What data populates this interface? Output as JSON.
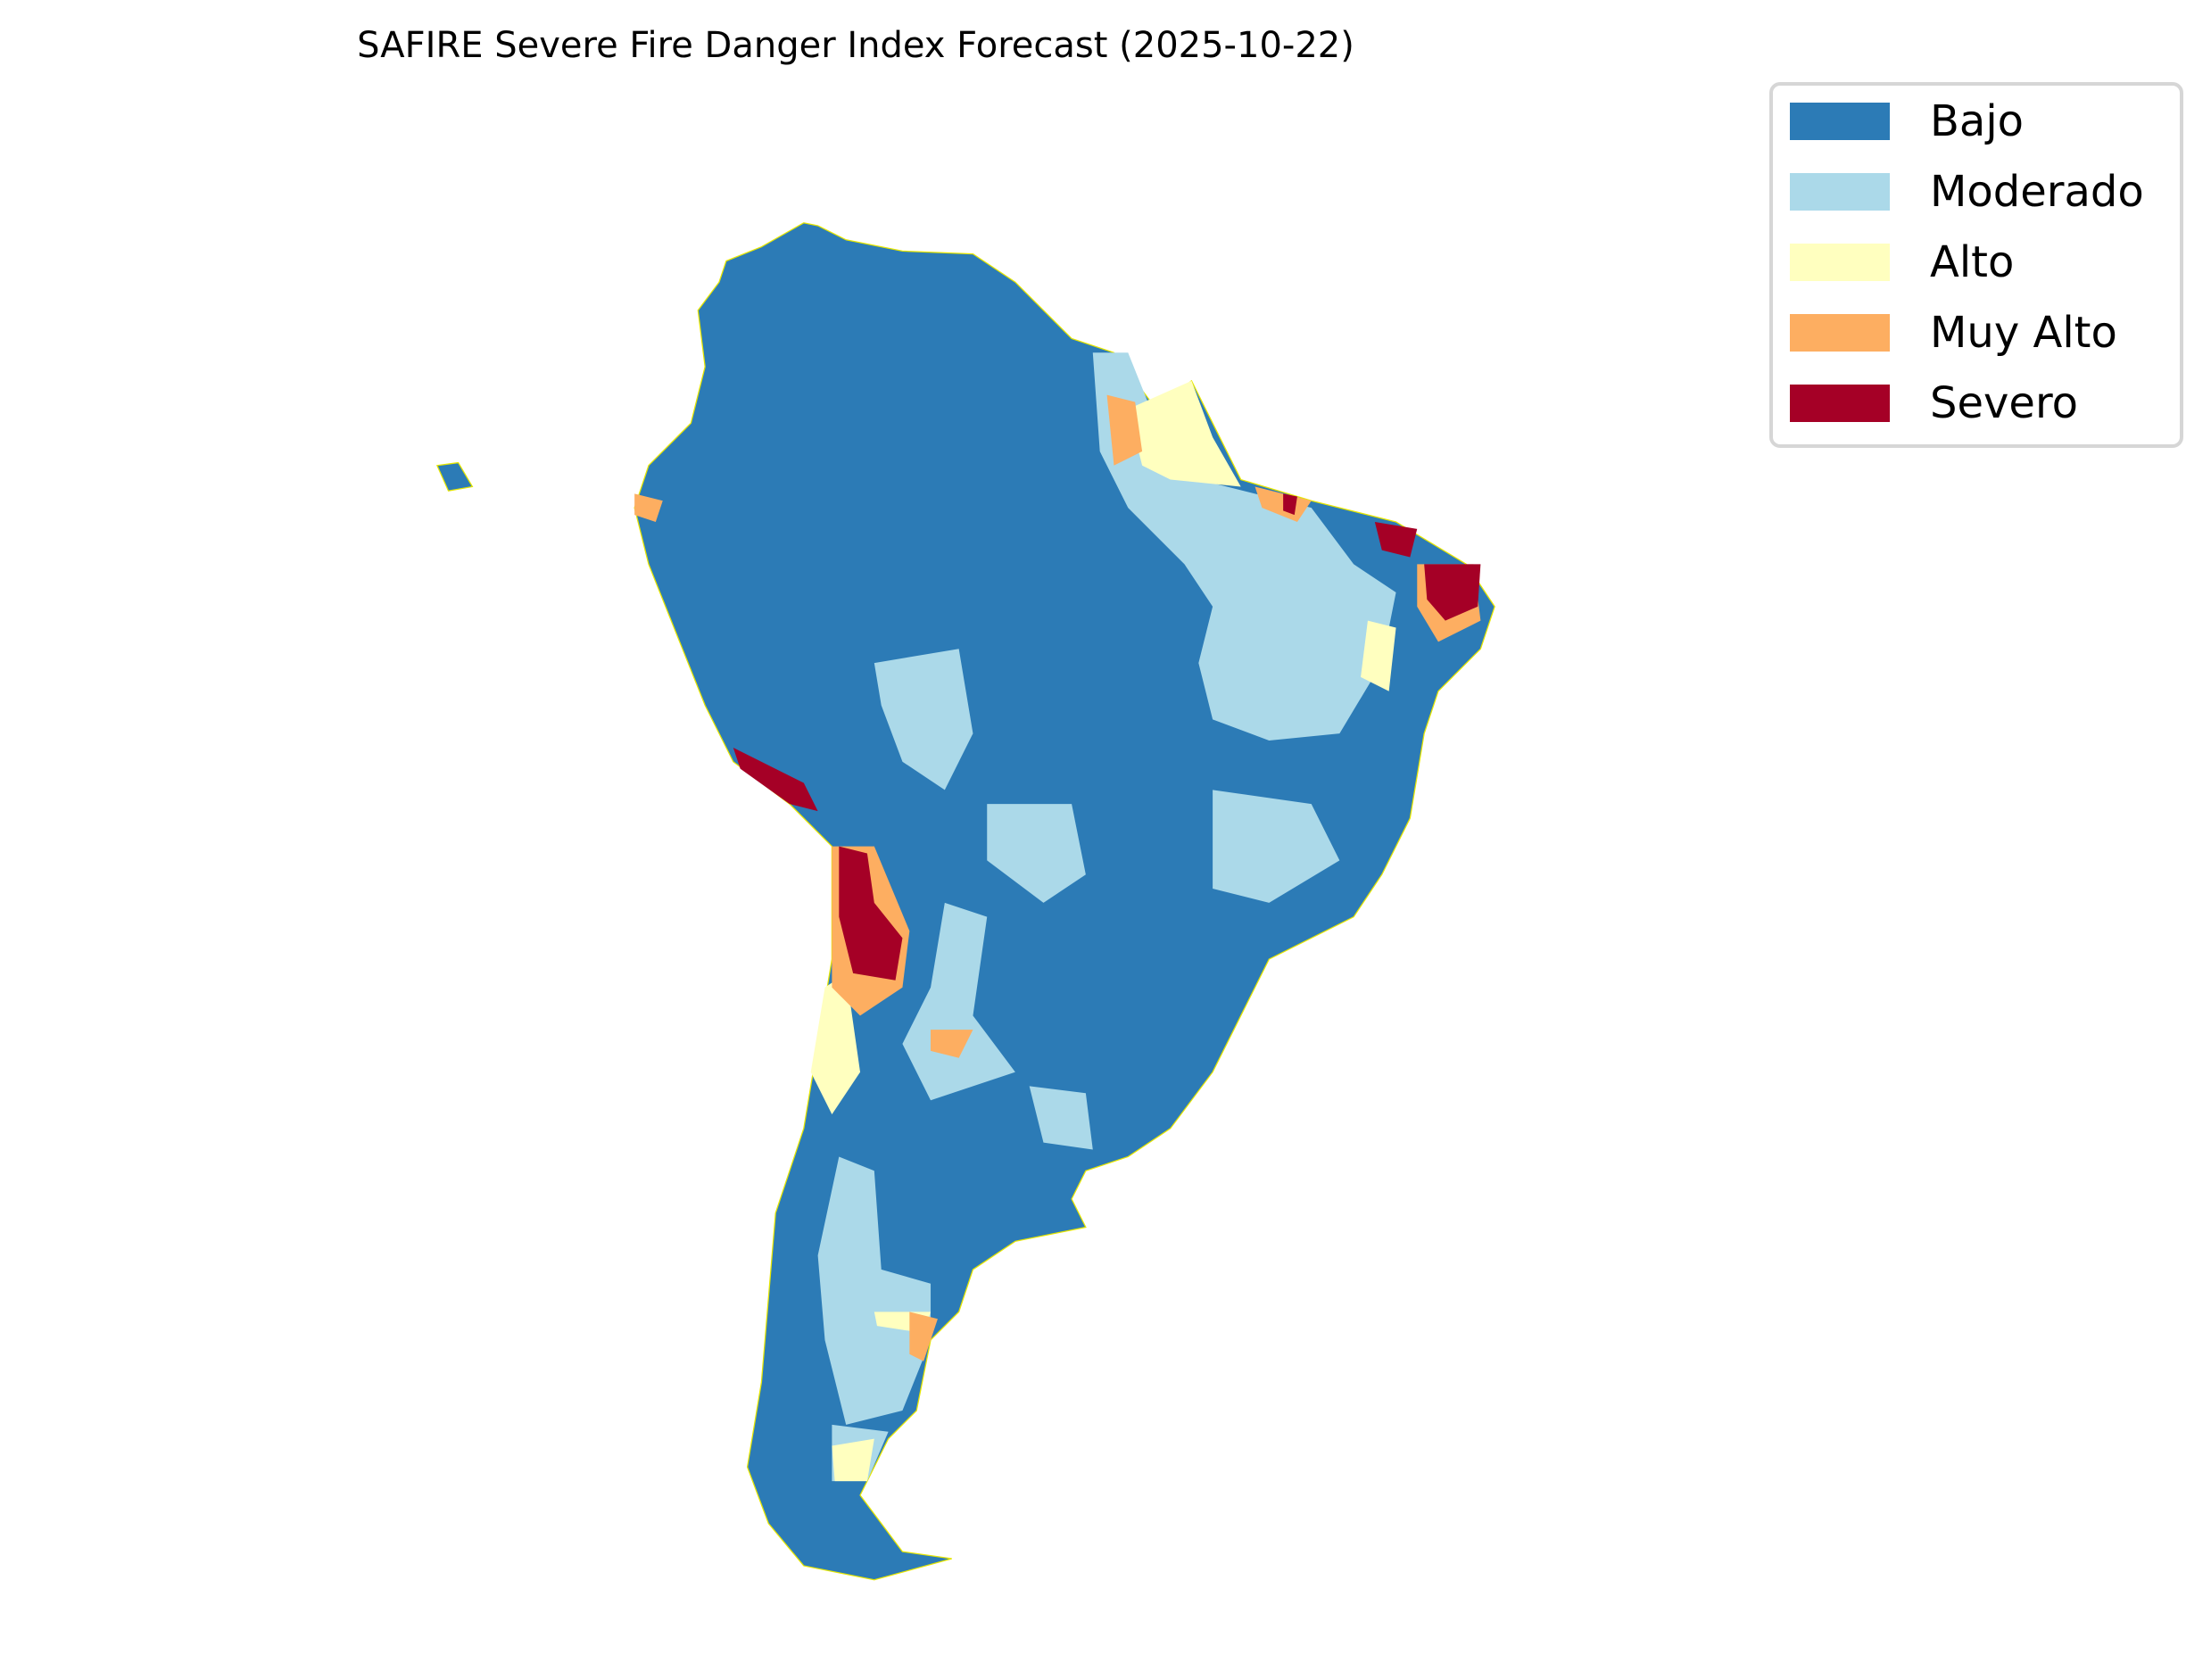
{
  "title": "SAFIRE Severe Fire Danger Index Forecast (2025-10-22)",
  "legend": {
    "placement": "top-right",
    "items": [
      {
        "label": "Bajo",
        "color": "#2c7bb6"
      },
      {
        "label": "Moderado",
        "color": "#abd9e9"
      },
      {
        "label": "Alto",
        "color": "#ffffbf"
      },
      {
        "label": "Muy Alto",
        "color": "#fdae61"
      },
      {
        "label": "Severo",
        "color": "#a50026"
      }
    ]
  },
  "border_color": "#e6e600"
}
